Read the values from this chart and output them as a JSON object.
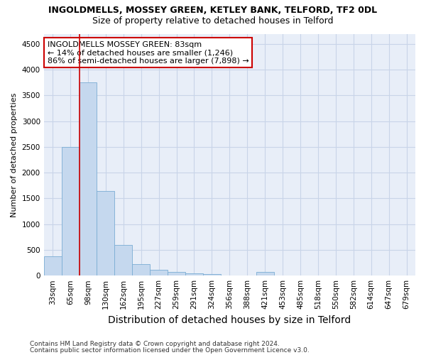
{
  "title1": "INGOLDMELLS, MOSSEY GREEN, KETLEY BANK, TELFORD, TF2 0DL",
  "title2": "Size of property relative to detached houses in Telford",
  "xlabel": "Distribution of detached houses by size in Telford",
  "ylabel": "Number of detached properties",
  "categories": [
    "33sqm",
    "65sqm",
    "98sqm",
    "130sqm",
    "162sqm",
    "195sqm",
    "227sqm",
    "259sqm",
    "291sqm",
    "324sqm",
    "356sqm",
    "388sqm",
    "421sqm",
    "453sqm",
    "485sqm",
    "518sqm",
    "550sqm",
    "582sqm",
    "614sqm",
    "647sqm",
    "679sqm"
  ],
  "values": [
    375,
    2500,
    3750,
    1650,
    600,
    230,
    110,
    65,
    40,
    35,
    0,
    0,
    65,
    0,
    0,
    0,
    0,
    0,
    0,
    0,
    0
  ],
  "bar_color": "#c5d8ee",
  "bar_edge_color": "#7aadd4",
  "ylim": [
    0,
    4700
  ],
  "yticks": [
    0,
    500,
    1000,
    1500,
    2000,
    2500,
    3000,
    3500,
    4000,
    4500
  ],
  "vline_color": "#cc0000",
  "annotation_text": "INGOLDMELLS MOSSEY GREEN: 83sqm\n← 14% of detached houses are smaller (1,246)\n86% of semi-detached houses are larger (7,898) →",
  "annotation_box_color": "#ffffff",
  "annotation_box_edge": "#cc0000",
  "footer1": "Contains HM Land Registry data © Crown copyright and database right 2024.",
  "footer2": "Contains public sector information licensed under the Open Government Licence v3.0.",
  "grid_color": "#c8d4e8",
  "bg_color": "#e8eef8",
  "title1_fontsize": 9,
  "title2_fontsize": 9,
  "xlabel_fontsize": 10,
  "ylabel_fontsize": 8,
  "tick_fontsize": 7.5,
  "annotation_fontsize": 8,
  "footer_fontsize": 6.5
}
